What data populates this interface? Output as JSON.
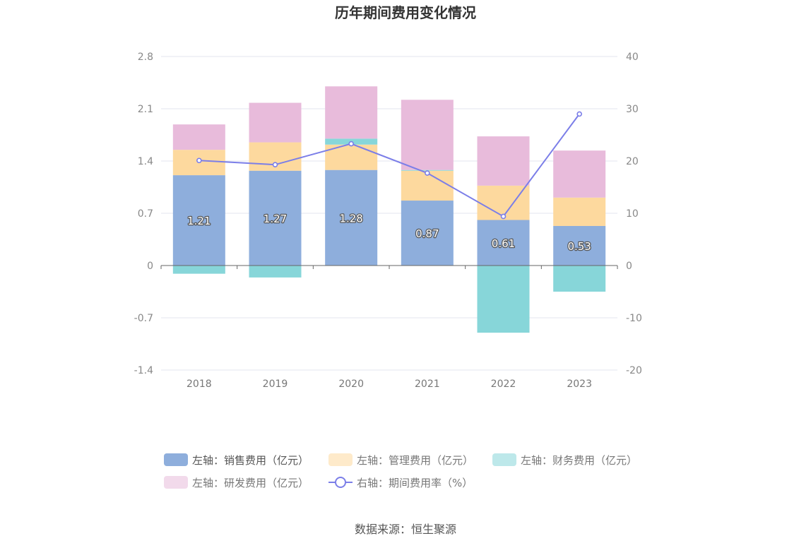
{
  "title": "历年期间费用变化情况",
  "source": "数据来源：恒生聚源",
  "colors": {
    "sales": "#8eaedc",
    "admin": "#fdd99e",
    "finance": "#87d6d9",
    "rnd": "#e8bbdb",
    "rate": "#7b7ee8",
    "grid": "#e3e6ef",
    "axis": "#666666"
  },
  "chart_data": {
    "type": "bar",
    "stacked": true,
    "categories": [
      "2018",
      "2019",
      "2020",
      "2021",
      "2022",
      "2023"
    ],
    "left_axis": {
      "min": -1.4,
      "max": 2.8,
      "ticks": [
        "2.8",
        "2.1",
        "1.4",
        "0.7",
        "0",
        "-0.7",
        "-1.4"
      ],
      "tick_values": [
        2.8,
        2.1,
        1.4,
        0.7,
        0,
        -0.7,
        -1.4
      ]
    },
    "right_axis": {
      "min": -20,
      "max": 40,
      "ticks": [
        "40",
        "30",
        "20",
        "10",
        "0",
        "-10",
        "-20"
      ],
      "tick_values": [
        40,
        30,
        20,
        10,
        0,
        -10,
        -20
      ]
    },
    "series": [
      {
        "key": "sales",
        "name": "左轴：销售费用（亿元）",
        "type": "bar",
        "axis": "left",
        "values": [
          1.21,
          1.27,
          1.28,
          0.87,
          0.61,
          0.53
        ],
        "labels": [
          "1.21",
          "1.27",
          "1.28",
          "0.87",
          "0.61",
          "0.53"
        ]
      },
      {
        "key": "admin",
        "name": "左轴：管理费用（亿元）",
        "type": "bar",
        "axis": "left",
        "values": [
          0.34,
          0.38,
          0.34,
          0.4,
          0.46,
          0.38
        ]
      },
      {
        "key": "finance",
        "name": "左轴：财务费用（亿元）",
        "type": "bar",
        "axis": "left",
        "values": [
          -0.11,
          -0.16,
          0.08,
          0.01,
          -0.9,
          -0.35
        ]
      },
      {
        "key": "rnd",
        "name": "左轴：研发费用（亿元）",
        "type": "bar",
        "axis": "left",
        "values": [
          0.34,
          0.53,
          0.7,
          0.94,
          0.66,
          0.63
        ]
      },
      {
        "key": "rate",
        "name": "右轴：期间费用率（%）",
        "type": "line",
        "axis": "right",
        "values": [
          20.1,
          19.3,
          23.3,
          17.7,
          9.4,
          29.0
        ]
      }
    ],
    "grid": true,
    "legend_position": "bottom"
  }
}
